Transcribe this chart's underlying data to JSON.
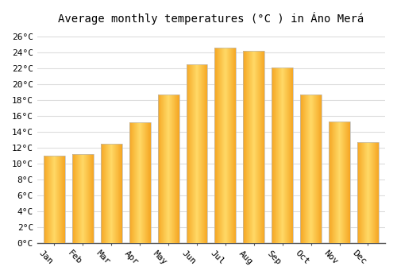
{
  "title": "Average monthly temperatures (°C ) in Áno Merá",
  "months": [
    "Jan",
    "Feb",
    "Mar",
    "Apr",
    "May",
    "Jun",
    "Jul",
    "Aug",
    "Sep",
    "Oct",
    "Nov",
    "Dec"
  ],
  "values": [
    11,
    11.2,
    12.5,
    15.2,
    18.7,
    22.5,
    24.6,
    24.2,
    22.1,
    18.7,
    15.3,
    12.7
  ],
  "bar_color_left": "#F5A623",
  "bar_color_center": "#FFD966",
  "bar_color_right": "#F5A623",
  "bar_edge_color": "#BBBBBB",
  "ylim": [
    0,
    27
  ],
  "yticks": [
    0,
    2,
    4,
    6,
    8,
    10,
    12,
    14,
    16,
    18,
    20,
    22,
    24,
    26
  ],
  "ytick_labels": [
    "0°C",
    "2°C",
    "4°C",
    "6°C",
    "8°C",
    "10°C",
    "12°C",
    "14°C",
    "16°C",
    "18°C",
    "20°C",
    "22°C",
    "24°C",
    "26°C"
  ],
  "background_color": "#FFFFFF",
  "grid_color": "#DDDDDD",
  "title_fontsize": 10,
  "tick_fontsize": 8,
  "xlabel_rotation": -45
}
